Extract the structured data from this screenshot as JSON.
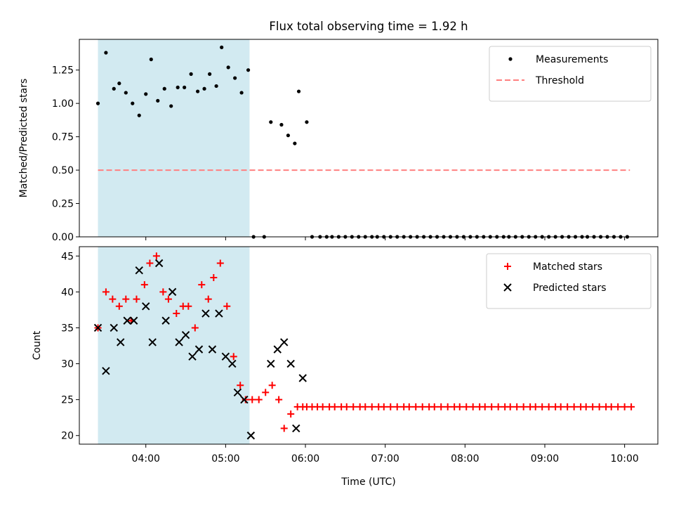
{
  "figure": {
    "title": "Flux total observing time = 1.92 h",
    "xlabel": "Time (UTC)"
  },
  "chart_data": [
    {
      "type": "scatter",
      "ylabel": "Matched/Predicted stars",
      "ylim": [
        0,
        1.48
      ],
      "yticks": [
        0.0,
        0.25,
        0.5,
        0.75,
        1.0,
        1.25
      ],
      "ytick_labels": [
        "0.00",
        "0.25",
        "0.50",
        "0.75",
        "1.00",
        "1.25"
      ],
      "xlim": [
        "03:10",
        "10:25"
      ],
      "xtick_labels": [
        "04:00",
        "05:00",
        "06:00",
        "07:00",
        "08:00",
        "09:00",
        "10:00"
      ],
      "legend_position": "top-right",
      "shaded_span": {
        "x": [
          "03:24",
          "05:18"
        ],
        "color": "#add8e6"
      },
      "threshold": {
        "name": "Threshold",
        "y": 0.5,
        "x": [
          "03:24",
          "10:04"
        ],
        "color": "#ff8080",
        "style": "dashed"
      },
      "series": [
        {
          "name": "Measurements",
          "marker": "dot",
          "color": "#000000",
          "x": [
            "03:24",
            "03:30",
            "03:36",
            "03:40",
            "03:45",
            "03:50",
            "03:55",
            "04:00",
            "04:04",
            "04:09",
            "04:14",
            "04:19",
            "04:24",
            "04:29",
            "04:34",
            "04:39",
            "04:44",
            "04:48",
            "04:53",
            "04:57",
            "05:02",
            "05:07",
            "05:12",
            "05:17",
            "05:21",
            "05:29",
            "05:34",
            "05:42",
            "05:47",
            "05:52",
            "05:55",
            "06:01",
            "06:05",
            "06:11",
            "06:16",
            "06:20",
            "06:25",
            "06:30",
            "06:35",
            "06:40",
            "06:45",
            "06:50",
            "06:54",
            "06:59",
            "07:04",
            "07:09",
            "07:14",
            "07:19",
            "07:24",
            "07:29",
            "07:34",
            "07:39",
            "07:44",
            "07:49",
            "07:54",
            "07:59",
            "08:04",
            "08:09",
            "08:14",
            "08:19",
            "08:24",
            "08:29",
            "08:33",
            "08:38",
            "08:43",
            "08:48",
            "08:53",
            "08:58",
            "09:03",
            "09:08",
            "09:13",
            "09:18",
            "09:23",
            "09:28",
            "09:32",
            "09:37",
            "09:42",
            "09:47",
            "09:52",
            "09:57",
            "10:02"
          ],
          "values": [
            1.0,
            1.38,
            1.11,
            1.15,
            1.08,
            1.0,
            0.91,
            1.07,
            1.33,
            1.02,
            1.11,
            0.98,
            1.12,
            1.12,
            1.22,
            1.09,
            1.11,
            1.22,
            1.13,
            1.42,
            1.27,
            1.19,
            1.08,
            1.25,
            0,
            0,
            0.86,
            0.84,
            0.76,
            0.7,
            1.09,
            0.86,
            0,
            0,
            0,
            0,
            0,
            0,
            0,
            0,
            0,
            0,
            0,
            0,
            0,
            0,
            0,
            0,
            0,
            0,
            0,
            0,
            0,
            0,
            0,
            0,
            0,
            0,
            0,
            0,
            0,
            0,
            0,
            0,
            0,
            0,
            0,
            0,
            0,
            0,
            0,
            0,
            0,
            0,
            0,
            0,
            0,
            0,
            0,
            0,
            0
          ]
        }
      ]
    },
    {
      "type": "scatter",
      "ylabel": "Count",
      "ylim": [
        18.8,
        46.3
      ],
      "yticks": [
        20,
        25,
        30,
        35,
        40,
        45
      ],
      "ytick_labels": [
        "20",
        "25",
        "30",
        "35",
        "40",
        "45"
      ],
      "xlim": [
        "03:10",
        "10:25"
      ],
      "xtick_labels": [
        "04:00",
        "05:00",
        "06:00",
        "07:00",
        "08:00",
        "09:00",
        "10:00"
      ],
      "legend_position": "top-right",
      "shaded_span": {
        "x": [
          "03:24",
          "05:18"
        ],
        "color": "#add8e6"
      },
      "series": [
        {
          "name": "Matched stars",
          "marker": "plus",
          "color": "#ff0000",
          "x": [
            "03:24",
            "03:30",
            "03:35",
            "03:40",
            "03:45",
            "03:49",
            "03:53",
            "03:59",
            "04:03",
            "04:08",
            "04:13",
            "04:17",
            "04:23",
            "04:28",
            "04:32",
            "04:37",
            "04:42",
            "04:47",
            "04:51",
            "04:56",
            "05:01",
            "05:06",
            "05:11",
            "05:15",
            "05:20",
            "05:25",
            "05:30",
            "05:35",
            "05:40",
            "05:44",
            "05:49",
            "05:54",
            "05:58",
            "06:01",
            "06:05",
            "06:09",
            "06:13",
            "06:18",
            "06:22",
            "06:27",
            "06:31",
            "06:36",
            "06:41",
            "06:45",
            "06:50",
            "06:55",
            "06:59",
            "07:04",
            "07:09",
            "07:14",
            "07:18",
            "07:23",
            "07:28",
            "07:33",
            "07:37",
            "07:42",
            "07:47",
            "07:52",
            "07:56",
            "08:01",
            "08:06",
            "08:11",
            "08:15",
            "08:20",
            "08:25",
            "08:30",
            "08:34",
            "08:39",
            "08:44",
            "08:49",
            "08:53",
            "08:58",
            "09:03",
            "09:08",
            "09:12",
            "09:17",
            "09:22",
            "09:27",
            "09:31",
            "09:36",
            "09:41",
            "09:46",
            "09:50",
            "09:55",
            "10:00",
            "10:05"
          ],
          "values": [
            35,
            40,
            39,
            38,
            39,
            36,
            39,
            41,
            44,
            45,
            40,
            39,
            37,
            38,
            38,
            35,
            41,
            39,
            42,
            44,
            38,
            31,
            27,
            25,
            25,
            25,
            26,
            27,
            25,
            21,
            23,
            24,
            24,
            24,
            24,
            24,
            24,
            24,
            24,
            24,
            24,
            24,
            24,
            24,
            24,
            24,
            24,
            24,
            24,
            24,
            24,
            24,
            24,
            24,
            24,
            24,
            24,
            24,
            24,
            24,
            24,
            24,
            24,
            24,
            24,
            24,
            24,
            24,
            24,
            24,
            24,
            24,
            24,
            24,
            24,
            24,
            24,
            24,
            24,
            24,
            24,
            24,
            24,
            24,
            24,
            24
          ]
        },
        {
          "name": "Predicted stars",
          "marker": "x",
          "color": "#000000",
          "x": [
            "03:24",
            "03:30",
            "03:36",
            "03:41",
            "03:46",
            "03:51",
            "03:55",
            "04:00",
            "04:05",
            "04:10",
            "04:15",
            "04:20",
            "04:25",
            "04:30",
            "04:35",
            "04:40",
            "04:45",
            "04:50",
            "04:55",
            "05:00",
            "05:05",
            "05:09",
            "05:14",
            "05:19",
            "05:34",
            "05:39",
            "05:44",
            "05:49",
            "05:53",
            "05:58"
          ],
          "values": [
            35,
            29,
            35,
            33,
            36,
            36,
            43,
            38,
            33,
            44,
            36,
            40,
            33,
            34,
            31,
            32,
            37,
            32,
            37,
            31,
            30,
            26,
            25,
            20,
            30,
            32,
            33,
            30,
            21,
            28
          ]
        }
      ]
    }
  ]
}
